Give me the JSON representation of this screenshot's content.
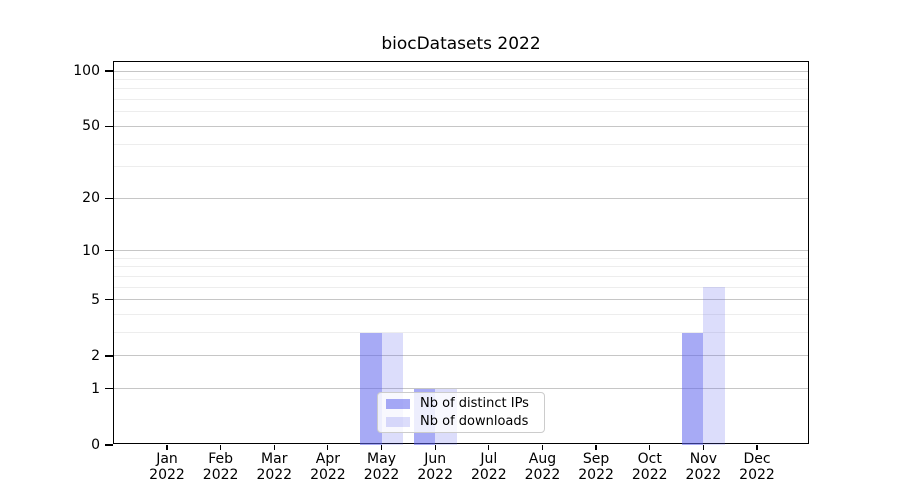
{
  "chart_data": {
    "type": "bar",
    "title": "biocDatasets 2022",
    "categories": [
      "Jan 2022",
      "Feb 2022",
      "Mar 2022",
      "Apr 2022",
      "May 2022",
      "Jun 2022",
      "Jul 2022",
      "Aug 2022",
      "Sep 2022",
      "Oct 2022",
      "Nov 2022",
      "Dec 2022"
    ],
    "series": [
      {
        "name": "Nb of distinct IPs",
        "color": "#a4a7f2",
        "fill": "rgba(94,100,237,0.55)",
        "values": [
          0,
          0,
          0,
          0,
          3,
          1,
          0,
          0,
          0,
          0,
          3,
          0
        ]
      },
      {
        "name": "Nb of downloads",
        "color": "#d9dbfa",
        "fill": "rgba(94,100,237,0.22)",
        "values": [
          0,
          0,
          0,
          0,
          3,
          1,
          0,
          0,
          0,
          0,
          6,
          0
        ]
      }
    ],
    "xlabel": "",
    "ylabel": "",
    "yscale": "log1p",
    "yticks": [
      0,
      1,
      2,
      5,
      10,
      20,
      50,
      100
    ],
    "minor_gridlines": [
      3,
      4,
      6,
      7,
      8,
      9,
      30,
      40,
      60,
      70,
      80,
      90
    ],
    "ylim": [
      0,
      112
    ],
    "grid": "horizontal",
    "legend_position": "lower-center-inside",
    "grid_major_color": "#c6c6c6",
    "grid_minor_color": "#ededed"
  }
}
